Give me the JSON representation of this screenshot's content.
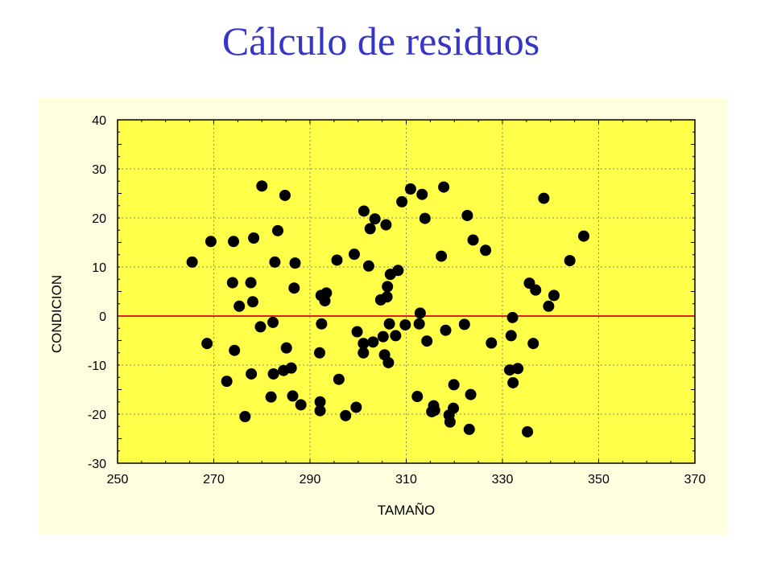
{
  "slide": {
    "title": "Cálculo de residuos"
  },
  "chart_data": {
    "type": "scatter",
    "xlabel": "TAMAÑO",
    "ylabel": "CONDICION",
    "xlim": [
      250,
      370
    ],
    "ylim": [
      -30,
      40
    ],
    "xticks": [
      250,
      270,
      290,
      310,
      330,
      350,
      370
    ],
    "yticks": [
      -30,
      -20,
      -10,
      0,
      10,
      20,
      30,
      40
    ],
    "grid": true,
    "reference_line": {
      "y": 0,
      "color": "#e02020"
    },
    "colors": {
      "panel": "#ffffe0",
      "plot_area": "#ffff4a",
      "points": "#000000",
      "title": "#3535c8"
    },
    "series": [
      {
        "points": [
          [
            265.5,
            11
          ],
          [
            268.6,
            -5.6
          ],
          [
            269.4,
            15.2
          ],
          [
            272.7,
            -13.3
          ],
          [
            273.9,
            6.8
          ],
          [
            274.1,
            15.2
          ],
          [
            274.3,
            -7
          ],
          [
            275.3,
            2
          ],
          [
            276.5,
            -20.5
          ],
          [
            277.7,
            6.8
          ],
          [
            277.8,
            -11.8
          ],
          [
            278.1,
            2.9
          ],
          [
            278.3,
            15.9
          ],
          [
            279.7,
            -2.2
          ],
          [
            280,
            26.5
          ],
          [
            281.9,
            -16.5
          ],
          [
            282.3,
            -1.3
          ],
          [
            282.4,
            -11.8
          ],
          [
            282.7,
            11
          ],
          [
            283.3,
            17.4
          ],
          [
            284.5,
            -11.1
          ],
          [
            284.8,
            24.6
          ],
          [
            285.1,
            -6.5
          ],
          [
            286.1,
            -10.6
          ],
          [
            286.4,
            -16.3
          ],
          [
            286.7,
            5.7
          ],
          [
            286.9,
            10.8
          ],
          [
            288.1,
            -18.1
          ],
          [
            292,
            -7.5
          ],
          [
            292.1,
            -19.3
          ],
          [
            292.1,
            -17.5
          ],
          [
            292.3,
            4.2
          ],
          [
            292.4,
            -1.6
          ],
          [
            293.1,
            3.1
          ],
          [
            293.4,
            4.7
          ],
          [
            295.6,
            11.4
          ],
          [
            296,
            -12.9
          ],
          [
            297.4,
            -20.3
          ],
          [
            299.2,
            12.6
          ],
          [
            299.6,
            -18.6
          ],
          [
            299.8,
            -3.2
          ],
          [
            301.1,
            -7.5
          ],
          [
            301.1,
            -5.6
          ],
          [
            301.2,
            21.4
          ],
          [
            302.2,
            10.2
          ],
          [
            302.5,
            17.8
          ],
          [
            303.1,
            -5.3
          ],
          [
            303.5,
            19.8
          ],
          [
            304.7,
            3.3
          ],
          [
            305.2,
            -4.2
          ],
          [
            305.5,
            -7.9
          ],
          [
            305.8,
            18.6
          ],
          [
            306,
            3.9
          ],
          [
            306.1,
            6
          ],
          [
            306.3,
            -9.5
          ],
          [
            306.5,
            -1.6
          ],
          [
            306.7,
            8.5
          ],
          [
            307.8,
            -4
          ],
          [
            308.3,
            9.3
          ],
          [
            309.1,
            23.3
          ],
          [
            309.8,
            -1.8
          ],
          [
            310.9,
            25.9
          ],
          [
            312.3,
            -16.4
          ],
          [
            312.7,
            -1.6
          ],
          [
            312.9,
            0.6
          ],
          [
            313.3,
            24.8
          ],
          [
            313.9,
            19.9
          ],
          [
            314.3,
            -5.1
          ],
          [
            315.3,
            -19.5
          ],
          [
            315.7,
            -18.3
          ],
          [
            315.9,
            -19.2
          ],
          [
            317.3,
            12.2
          ],
          [
            317.8,
            26.3
          ],
          [
            318.2,
            -2.9
          ],
          [
            318.9,
            -20.2
          ],
          [
            319.1,
            -21.6
          ],
          [
            319.8,
            -18.8
          ],
          [
            319.9,
            -14
          ],
          [
            322.1,
            -1.7
          ],
          [
            322.7,
            20.5
          ],
          [
            323.1,
            -23.1
          ],
          [
            323.4,
            -16
          ],
          [
            323.9,
            15.5
          ],
          [
            326.5,
            13.4
          ],
          [
            327.7,
            -5.5
          ],
          [
            331.5,
            -11
          ],
          [
            331.8,
            -4
          ],
          [
            332.1,
            -0.3
          ],
          [
            332.2,
            -13.6
          ],
          [
            333.2,
            -10.7
          ],
          [
            335.2,
            -23.6
          ],
          [
            335.6,
            6.7
          ],
          [
            336.4,
            -5.6
          ],
          [
            336.9,
            5.3
          ],
          [
            338.6,
            24
          ],
          [
            339.6,
            2
          ],
          [
            340.7,
            4.2
          ],
          [
            344,
            11.3
          ],
          [
            346.9,
            16.3
          ]
        ]
      }
    ]
  }
}
